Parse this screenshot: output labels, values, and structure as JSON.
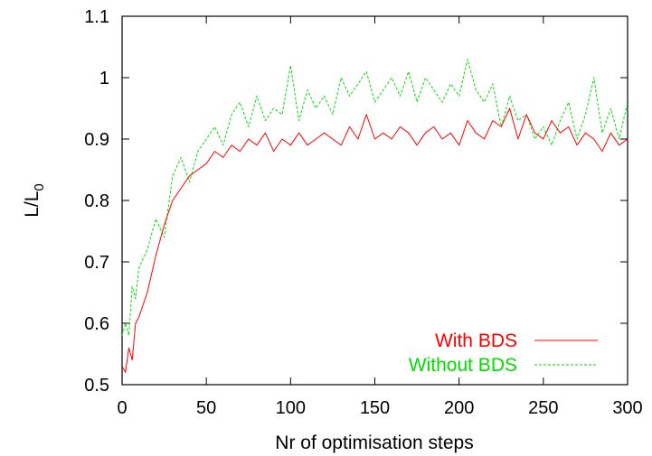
{
  "chart_data": {
    "type": "line",
    "title": "",
    "xlabel": "Nr of optimisation steps",
    "ylabel": "L/L0",
    "ylabel_main": "L/L",
    "ylabel_sub": "0",
    "xlim": [
      0,
      300
    ],
    "ylim": [
      0.5,
      1.1
    ],
    "xticks": [
      "0",
      "50",
      "100",
      "150",
      "200",
      "250",
      "300"
    ],
    "yticks": [
      "0.5",
      "0.6",
      "0.7",
      "0.8",
      "0.9",
      "1",
      "1.1"
    ],
    "grid": false,
    "legend_position": "bottom-right",
    "series": [
      {
        "name": "With BDS",
        "color": "#ff0000",
        "style": "solid",
        "x": [
          0,
          2,
          4,
          6,
          8,
          10,
          15,
          20,
          25,
          30,
          35,
          40,
          45,
          50,
          55,
          60,
          65,
          70,
          75,
          80,
          85,
          90,
          95,
          100,
          105,
          110,
          115,
          120,
          125,
          130,
          135,
          140,
          145,
          150,
          155,
          160,
          165,
          170,
          175,
          180,
          185,
          190,
          195,
          200,
          205,
          210,
          215,
          220,
          225,
          230,
          235,
          240,
          245,
          250,
          255,
          260,
          265,
          270,
          275,
          280,
          285,
          290,
          295,
          300
        ],
        "y": [
          0.53,
          0.52,
          0.56,
          0.54,
          0.6,
          0.61,
          0.65,
          0.71,
          0.76,
          0.8,
          0.82,
          0.84,
          0.85,
          0.86,
          0.88,
          0.87,
          0.89,
          0.88,
          0.9,
          0.89,
          0.91,
          0.88,
          0.9,
          0.89,
          0.91,
          0.89,
          0.9,
          0.91,
          0.9,
          0.89,
          0.92,
          0.9,
          0.94,
          0.9,
          0.91,
          0.9,
          0.92,
          0.91,
          0.89,
          0.91,
          0.92,
          0.9,
          0.91,
          0.89,
          0.93,
          0.91,
          0.9,
          0.93,
          0.92,
          0.95,
          0.9,
          0.94,
          0.91,
          0.9,
          0.93,
          0.91,
          0.92,
          0.89,
          0.91,
          0.9,
          0.88,
          0.91,
          0.89,
          0.9
        ]
      },
      {
        "name": "Without BDS",
        "color": "#00dd00",
        "style": "dashed",
        "x": [
          0,
          2,
          4,
          6,
          8,
          10,
          15,
          20,
          25,
          30,
          35,
          40,
          45,
          50,
          55,
          60,
          65,
          70,
          75,
          80,
          85,
          90,
          95,
          100,
          105,
          110,
          115,
          120,
          125,
          130,
          135,
          140,
          145,
          150,
          155,
          160,
          165,
          170,
          175,
          180,
          185,
          190,
          195,
          200,
          205,
          210,
          215,
          220,
          225,
          230,
          235,
          240,
          245,
          250,
          255,
          260,
          265,
          270,
          275,
          280,
          285,
          290,
          295,
          300
        ],
        "y": [
          0.58,
          0.6,
          0.58,
          0.66,
          0.64,
          0.69,
          0.72,
          0.77,
          0.74,
          0.84,
          0.87,
          0.83,
          0.88,
          0.9,
          0.92,
          0.89,
          0.94,
          0.96,
          0.92,
          0.97,
          0.93,
          0.95,
          0.94,
          1.02,
          0.93,
          0.98,
          0.95,
          0.97,
          0.94,
          1.0,
          0.97,
          0.99,
          1.01,
          0.96,
          0.98,
          1.0,
          0.97,
          1.01,
          0.96,
          1.0,
          0.98,
          0.96,
          0.99,
          0.97,
          1.03,
          0.98,
          0.96,
          0.99,
          0.92,
          0.97,
          0.93,
          0.94,
          0.9,
          0.92,
          0.89,
          0.93,
          0.96,
          0.9,
          0.94,
          1.0,
          0.91,
          0.95,
          0.9,
          0.96
        ]
      }
    ]
  }
}
